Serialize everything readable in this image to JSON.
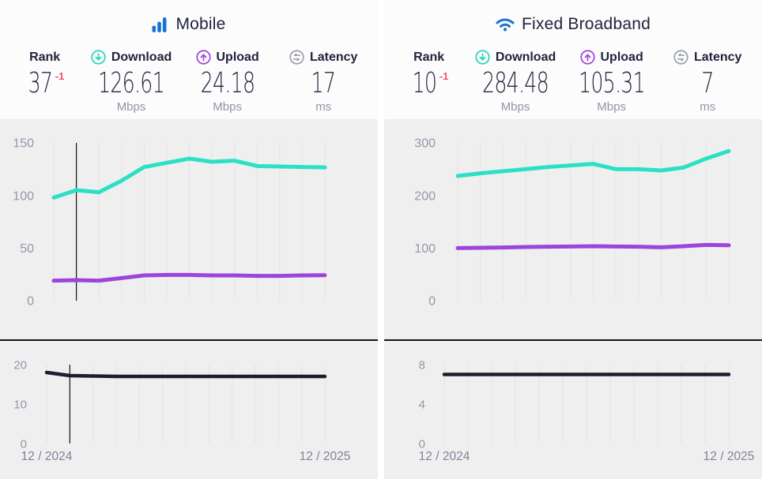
{
  "colors": {
    "accent_blue": "#1774d1",
    "download_teal": "#2be0c6",
    "upload_purple": "#9c44dc",
    "latency_dark": "#1b1e2f",
    "rank_change_red": "#f4506b",
    "grid_line": "#e4e3e5",
    "cursor_line": "#111118",
    "tick_text": "#9397a8",
    "axis_text": "#7e8396",
    "chart_bg": "#f0eff0",
    "header_bg": "#fcfcfc"
  },
  "panels": [
    {
      "id": "mobile",
      "title": "Mobile",
      "icon": "mobile-signal-bars-icon",
      "stats": [
        {
          "label": "Rank",
          "value": "37",
          "change": "-1",
          "unit": ""
        },
        {
          "label": "Download",
          "value": "126.61",
          "unit": "Mbps"
        },
        {
          "label": "Upload",
          "value": "24.18",
          "unit": "Mbps"
        },
        {
          "label": "Latency",
          "value": "17",
          "unit": "ms"
        }
      ]
    },
    {
      "id": "fixed",
      "title": "Fixed Broadband",
      "icon": "wifi-icon",
      "stats": [
        {
          "label": "Rank",
          "value": "10",
          "change": "-1",
          "unit": ""
        },
        {
          "label": "Download",
          "value": "284.48",
          "unit": "Mbps"
        },
        {
          "label": "Upload",
          "value": "105.31",
          "unit": "Mbps"
        },
        {
          "label": "Latency",
          "value": "7",
          "unit": "ms"
        }
      ]
    }
  ],
  "chart_data": [
    {
      "id": "mobile_speed",
      "type": "line",
      "title": "Mobile download and upload speed over time",
      "x_range": [
        "12 / 2024",
        "12 / 2025"
      ],
      "points": 13,
      "ylim": [
        0,
        150
      ],
      "yticks": [
        0,
        50,
        100,
        150
      ],
      "grid": "vertical",
      "cursor_index": 1,
      "series": [
        {
          "name": "Download (Mbps)",
          "color": "#2be0c6",
          "values": [
            98,
            105,
            103,
            114,
            127,
            131,
            135,
            132,
            133,
            128,
            127.5,
            127,
            126.61
          ]
        },
        {
          "name": "Upload (Mbps)",
          "color": "#9c44dc",
          "values": [
            19,
            19.5,
            19,
            21.5,
            24,
            24.5,
            24.5,
            24,
            24,
            23.5,
            23.5,
            24,
            24.18
          ]
        }
      ]
    },
    {
      "id": "mobile_latency",
      "type": "line",
      "title": "Mobile latency over time",
      "x_labels": [
        "12 / 2024",
        "12 / 2025"
      ],
      "points": 13,
      "ylim": [
        0,
        20
      ],
      "yticks": [
        0,
        10,
        20
      ],
      "grid": "vertical",
      "cursor_index": 1,
      "series": [
        {
          "name": "Latency (ms)",
          "color": "#1b1e2f",
          "values": [
            18,
            17.2,
            17.1,
            17,
            17,
            17,
            17,
            17,
            17,
            17,
            17,
            17,
            17
          ]
        }
      ]
    },
    {
      "id": "fixed_speed",
      "type": "line",
      "title": "Fixed broadband download and upload speed over time",
      "x_range": [
        "12 / 2024",
        "12 / 2025"
      ],
      "points": 13,
      "ylim": [
        0,
        300
      ],
      "yticks": [
        0,
        100,
        200,
        300
      ],
      "grid": "vertical",
      "cursor_index": null,
      "series": [
        {
          "name": "Download (Mbps)",
          "color": "#2be0c6",
          "values": [
            237,
            242,
            246,
            250,
            254,
            257,
            260,
            250,
            250,
            247.5,
            253,
            270,
            284.48
          ]
        },
        {
          "name": "Upload (Mbps)",
          "color": "#9c44dc",
          "values": [
            100,
            100.5,
            101,
            102,
            102.5,
            103,
            103.5,
            103,
            102.5,
            101.5,
            103.5,
            106,
            105.31
          ]
        }
      ]
    },
    {
      "id": "fixed_latency",
      "type": "line",
      "title": "Fixed broadband latency over time",
      "x_labels": [
        "12 / 2024",
        "12 / 2025"
      ],
      "points": 13,
      "ylim": [
        0,
        8
      ],
      "yticks": [
        0,
        4,
        8
      ],
      "grid": "vertical",
      "cursor_index": null,
      "series": [
        {
          "name": "Latency (ms)",
          "color": "#1b1e2f",
          "values": [
            7,
            7,
            7,
            7,
            7,
            7,
            7,
            7,
            7,
            7,
            7,
            7,
            7
          ]
        }
      ]
    }
  ]
}
